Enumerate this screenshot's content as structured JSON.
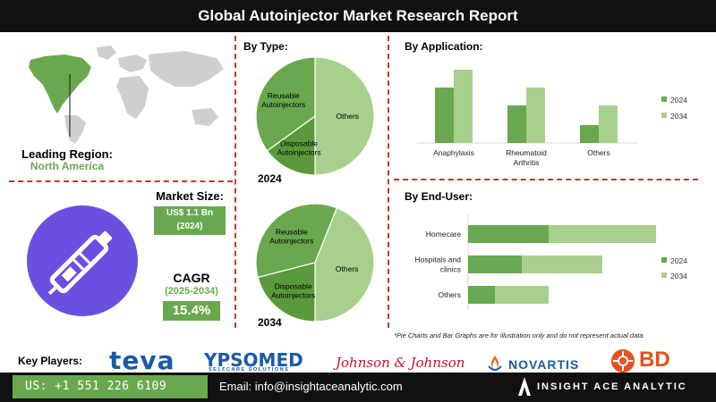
{
  "header": {
    "title": "Global Autoinjector Market Research Report"
  },
  "region": {
    "label": "Leading Region:",
    "value": "North America"
  },
  "market_size": {
    "label": "Market Size:",
    "value": "US$ 1.1 Bn",
    "year": "(2024)"
  },
  "cagr": {
    "label": "CAGR",
    "period": "(2025-2034)",
    "value": "15.4%"
  },
  "sections": {
    "by_type": "By Type:",
    "by_application": "By Application:",
    "by_end_user": "By End-User:"
  },
  "disclaimer": "*Pie Charts and Bar Graphs are for illustration only and do not represent actual data",
  "footer": {
    "key_players_label": "Key Players:",
    "phone": "US: +1 551 226 6109",
    "email": "Email: info@insightaceanalytic.com",
    "brand": "INSIGHT ACE ANALYTIC"
  },
  "players": {
    "teva": "teva",
    "ypsomed": "YPSOMED",
    "ypsomed_tag": "SELFCARE SOLUTIONS",
    "jnj": "Johnson & Johnson",
    "novartis": "NOVARTIS",
    "bd": "BD"
  },
  "colors": {
    "dark_green": "#5b9a3c",
    "mid_green": "#6aa84f",
    "light_green": "#a8d08d",
    "accent_red": "#c0392b",
    "bar_dark": "#111111"
  },
  "chart_data": [
    {
      "type": "pie",
      "title": "2024",
      "slices": [
        {
          "label": "Others",
          "value": 50
        },
        {
          "label": "Disposable Autoinjectors",
          "value": 15
        },
        {
          "label": "Reusable Autoinjectors",
          "value": 35
        }
      ]
    },
    {
      "type": "pie",
      "title": "2034",
      "slices": [
        {
          "label": "Others",
          "value": 44
        },
        {
          "label": "Disposable Autoinjectors",
          "value": 21
        },
        {
          "label": "Reusable Autoinjectors",
          "value": 35
        }
      ]
    },
    {
      "type": "bar",
      "orientation": "vertical",
      "categories": [
        "Anaphylaxis",
        "Rheumatoid Arthritis",
        "Others"
      ],
      "series": [
        {
          "name": "2024",
          "values": [
            62,
            42,
            20
          ]
        },
        {
          "name": "2034",
          "values": [
            82,
            62,
            42
          ]
        }
      ],
      "ylim": [
        0,
        90
      ],
      "legend": "right",
      "grid": false
    },
    {
      "type": "bar",
      "orientation": "horizontal",
      "categories": [
        "Homecare",
        "Hospitals and clinics",
        "Others"
      ],
      "series": [
        {
          "name": "2024",
          "values": [
            60,
            40,
            20
          ]
        },
        {
          "name": "2034",
          "values": [
            80,
            60,
            40
          ]
        }
      ],
      "xlim": [
        0,
        150
      ],
      "stacked": true,
      "legend": "right",
      "grid": false
    }
  ]
}
